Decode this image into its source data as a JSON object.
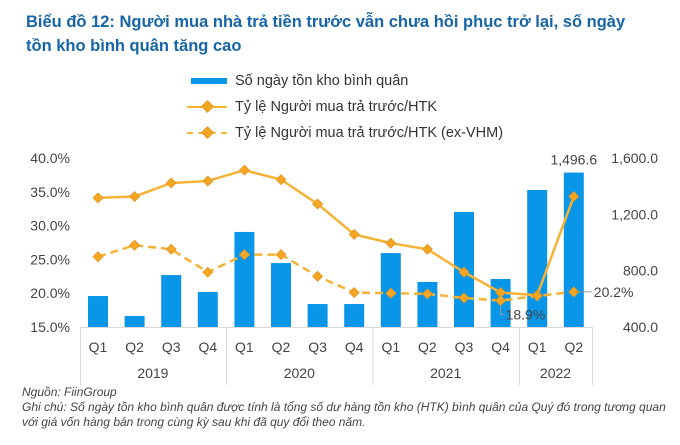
{
  "title": "Biểu đồ 12: Người mua nhà trả tiền trước vẫn chưa hồi phục trở lại, số ngày tồn kho bình quân tăng cao",
  "legend": [
    {
      "label": "Số ngày tồn kho bình quân",
      "kind": "bar"
    },
    {
      "label": "Tỷ lệ Người mua trả trước/HTK",
      "kind": "line"
    },
    {
      "label": "Tỷ lệ Người mua trả trước/HTK (ex-VHM)",
      "kind": "dashed"
    }
  ],
  "footer": {
    "source": "Nguồn: FiinGroup",
    "note": "Ghi chú: Số ngày tồn kho bình quân được tính là tổng số dư hàng tồn kho (HTK) bình quân của Quý đó trong tương quan với giá vốn hàng bán trong cùng kỳ sau khi đã quy đổi theo năm."
  },
  "chart_data": {
    "type": "bar",
    "title": "Biểu đồ 12: Người mua nhà trả tiền trước vẫn chưa hồi phục trở lại, số ngày tồn kho bình quân tăng cao",
    "categories": [
      "Q1",
      "Q2",
      "Q3",
      "Q4",
      "Q1",
      "Q2",
      "Q3",
      "Q4",
      "Q1",
      "Q2",
      "Q3",
      "Q4",
      "Q1",
      "Q2"
    ],
    "groups": [
      {
        "label": "2019",
        "count": 4
      },
      {
        "label": "2020",
        "count": 4
      },
      {
        "label": "2021",
        "count": 4
      },
      {
        "label": "2022",
        "count": 2
      }
    ],
    "colors": {
      "bar": "#0a96e8",
      "line": "#f5b335",
      "marker": "#f5a623",
      "axis": "#d9d9d9"
    },
    "left_axis": {
      "ylim": [
        15,
        40
      ],
      "ticks": [
        40,
        35,
        30,
        25,
        20,
        15
      ],
      "tick_labels": [
        "40.0%",
        "35.0%",
        "30.0%",
        "25.0%",
        "20.0%",
        "15.0%"
      ]
    },
    "right_axis": {
      "ylim": [
        400,
        1600
      ],
      "ticks": [
        1600,
        1200,
        800,
        400
      ],
      "tick_labels": [
        "1,600.0",
        "1,200.0",
        "800.0",
        "400.0"
      ]
    },
    "series": [
      {
        "name": "Số ngày tồn kho bình quân",
        "type": "bar",
        "axis": "right",
        "values": [
          620,
          478,
          769,
          649,
          1075,
          854,
          563,
          563,
          925,
          720,
          1217,
          741,
          1373,
          1496.6
        ]
      },
      {
        "name": "Tỷ lệ Người mua trả trước/HTK",
        "type": "line",
        "axis": "left",
        "values": [
          34.1,
          34.3,
          36.3,
          36.6,
          38.2,
          36.8,
          33.2,
          28.7,
          27.4,
          26.5,
          23.1,
          20.1,
          19.7,
          34.3
        ]
      },
      {
        "name": "Tỷ lệ Người mua trả trước/HTK (ex-VHM)",
        "type": "line-dashed",
        "axis": "left",
        "values": [
          25.4,
          27.1,
          26.5,
          23.1,
          25.7,
          25.7,
          22.5,
          20.1,
          20.0,
          19.9,
          19.3,
          18.9,
          19.6,
          20.2
        ]
      }
    ],
    "annotations": [
      {
        "text": "1,496.6",
        "series": 0,
        "index": 13
      },
      {
        "text": "18.9%",
        "series": 2,
        "index": 11
      },
      {
        "text": "20.2%",
        "series": 2,
        "index": 13
      }
    ],
    "grid": false,
    "legend_position": "top-center"
  }
}
